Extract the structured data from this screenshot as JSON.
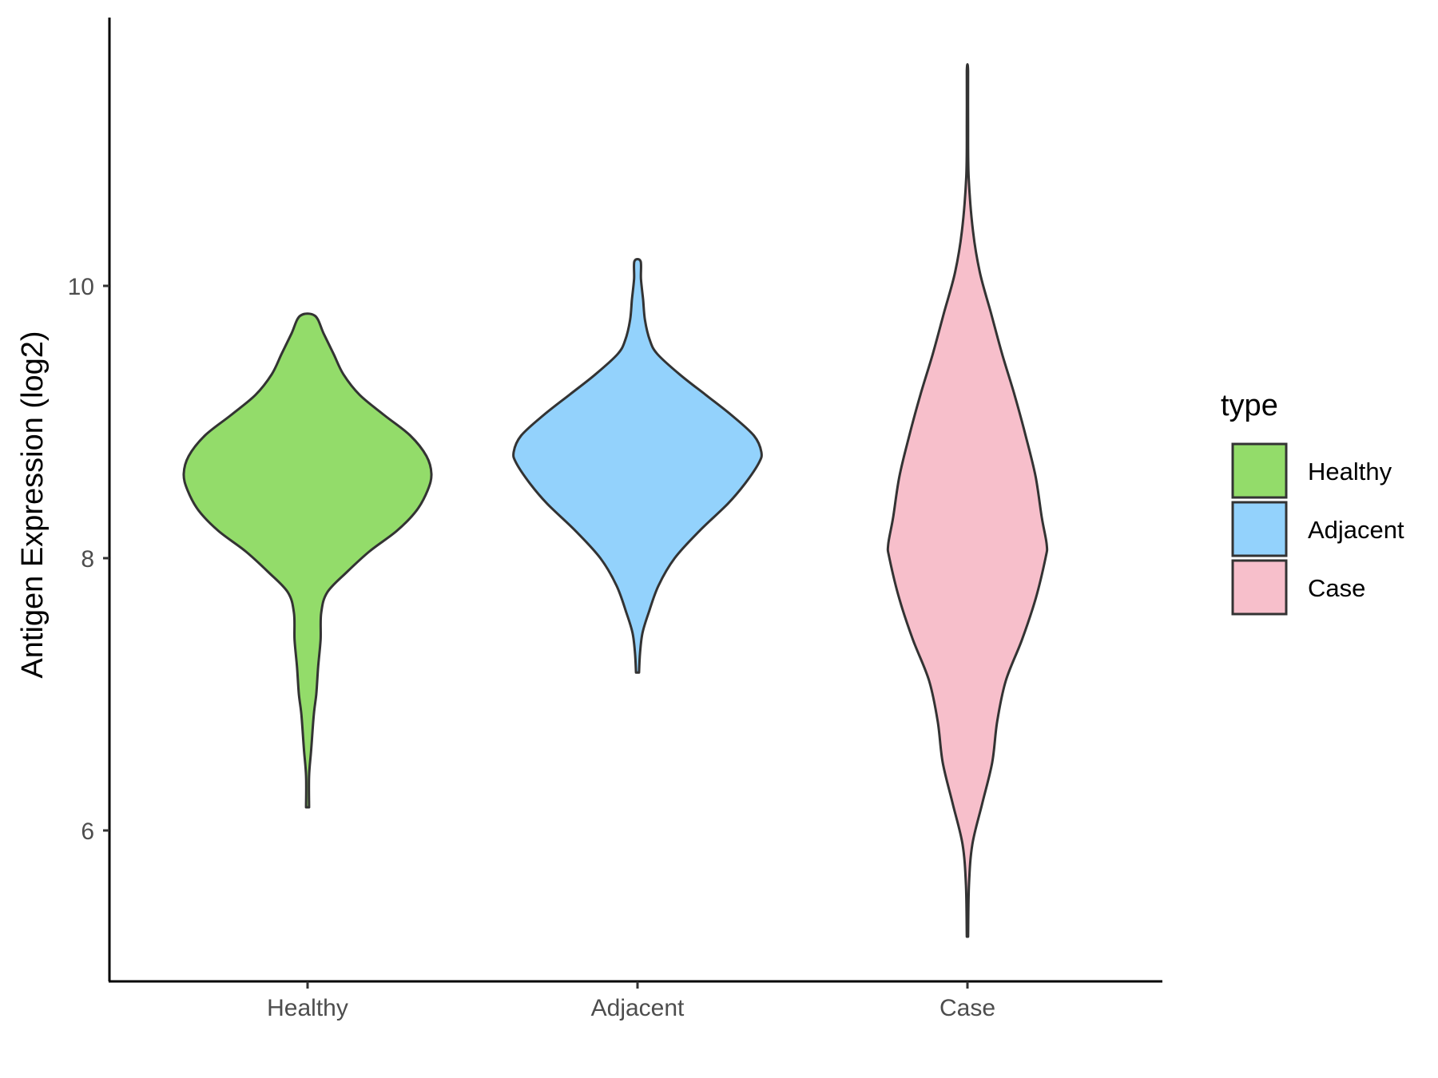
{
  "chart_data": {
    "type": "violin",
    "categories": [
      "Healthy",
      "Adjacent",
      "Case"
    ],
    "ylabel": "Antigen Expression (log2)",
    "xlabel": "",
    "ylim": [
      4.9,
      11.95
    ],
    "yticks": [
      6,
      8,
      10
    ],
    "grid": false,
    "legend": {
      "title": "type",
      "placement": "right",
      "entries": [
        "Healthy",
        "Adjacent",
        "Case"
      ]
    },
    "colors": {
      "Healthy": "#93dc6a",
      "Adjacent": "#93d2fc",
      "Case": "#f7bfcb",
      "outline": "#333333"
    },
    "series": [
      {
        "category": "Healthy",
        "min": 6.17,
        "max": 9.78,
        "density": [
          [
            6.17,
            0.012
          ],
          [
            6.4,
            0.012
          ],
          [
            6.6,
            0.03
          ],
          [
            6.85,
            0.05
          ],
          [
            7.0,
            0.07
          ],
          [
            7.2,
            0.085
          ],
          [
            7.4,
            0.105
          ],
          [
            7.6,
            0.11
          ],
          [
            7.75,
            0.16
          ],
          [
            7.9,
            0.32
          ],
          [
            8.05,
            0.5
          ],
          [
            8.2,
            0.72
          ],
          [
            8.35,
            0.88
          ],
          [
            8.5,
            0.97
          ],
          [
            8.62,
            1.0
          ],
          [
            8.75,
            0.96
          ],
          [
            8.9,
            0.83
          ],
          [
            9.05,
            0.62
          ],
          [
            9.2,
            0.42
          ],
          [
            9.35,
            0.29
          ],
          [
            9.5,
            0.21
          ],
          [
            9.65,
            0.13
          ],
          [
            9.78,
            0.06
          ]
        ]
      },
      {
        "category": "Adjacent",
        "min": 7.16,
        "max": 10.18,
        "density": [
          [
            7.16,
            0.012
          ],
          [
            7.3,
            0.02
          ],
          [
            7.45,
            0.04
          ],
          [
            7.6,
            0.09
          ],
          [
            7.8,
            0.17
          ],
          [
            8.0,
            0.3
          ],
          [
            8.2,
            0.5
          ],
          [
            8.4,
            0.73
          ],
          [
            8.55,
            0.87
          ],
          [
            8.7,
            0.98
          ],
          [
            8.78,
            1.0
          ],
          [
            8.9,
            0.94
          ],
          [
            9.05,
            0.76
          ],
          [
            9.2,
            0.55
          ],
          [
            9.35,
            0.34
          ],
          [
            9.5,
            0.16
          ],
          [
            9.6,
            0.1
          ],
          [
            9.75,
            0.06
          ],
          [
            9.9,
            0.045
          ],
          [
            10.05,
            0.028
          ],
          [
            10.18,
            0.025
          ]
        ]
      },
      {
        "category": "Case",
        "min": 5.22,
        "max": 11.58,
        "density": [
          [
            5.22,
            0.005
          ],
          [
            5.6,
            0.012
          ],
          [
            5.9,
            0.04
          ],
          [
            6.2,
            0.12
          ],
          [
            6.5,
            0.2
          ],
          [
            6.8,
            0.24
          ],
          [
            7.1,
            0.31
          ],
          [
            7.4,
            0.44
          ],
          [
            7.7,
            0.55
          ],
          [
            8.0,
            0.63
          ],
          [
            8.1,
            0.64
          ],
          [
            8.3,
            0.6
          ],
          [
            8.6,
            0.55
          ],
          [
            8.9,
            0.47
          ],
          [
            9.2,
            0.38
          ],
          [
            9.5,
            0.28
          ],
          [
            9.8,
            0.19
          ],
          [
            10.1,
            0.1
          ],
          [
            10.4,
            0.045
          ],
          [
            10.8,
            0.01
          ],
          [
            11.2,
            0.005
          ],
          [
            11.58,
            0.005
          ]
        ]
      }
    ]
  }
}
